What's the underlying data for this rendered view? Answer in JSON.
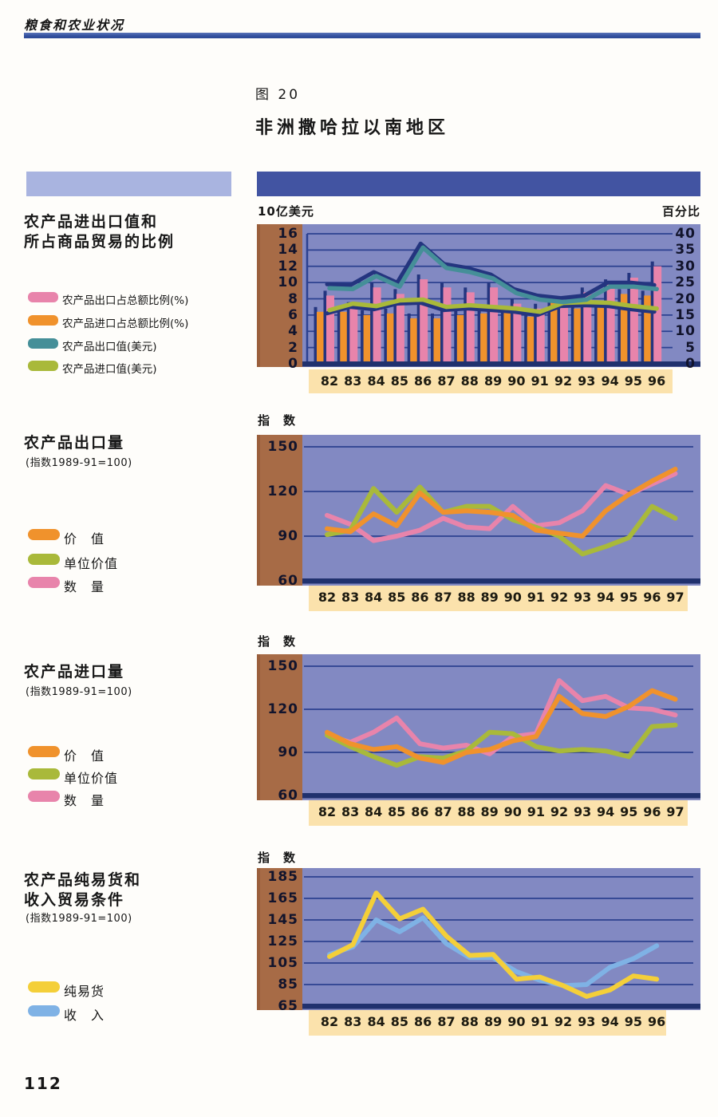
{
  "page": {
    "header": "粮食和农业状况",
    "figure_label": "图 20",
    "title": "非洲撒哈拉以南地区",
    "page_number": "112"
  },
  "colors": {
    "pink": "#e884ab",
    "orange": "#f0922c",
    "teal": "#458f98",
    "olive": "#a9b93a",
    "yellow": "#f4cf39",
    "sky": "#7fb2e5",
    "navy": "#24357f",
    "grid": "#2c4190",
    "plot_bg": "#8289c2",
    "axis_panel_brown": "#a76b46",
    "band_cream": "#fbe2ac",
    "header_bar_dark": "#4254a2",
    "header_bar_light": "#a9b4e0"
  },
  "sections": [
    {
      "title_lines": [
        "农产品进出口值和",
        "所占商品贸易的比例"
      ],
      "legend": [
        {
          "label": "农产品出口占总额比例(%)",
          "color": "#e884ab"
        },
        {
          "label": "农产品进口占总额比例(%)",
          "color": "#f0922c"
        },
        {
          "label": "农产品出口值(美元)",
          "color": "#458f98"
        },
        {
          "label": "农产品进口值(美元)",
          "color": "#a9b93a"
        }
      ]
    },
    {
      "title_lines": [
        "农产品出口量"
      ],
      "subtitle": "(指数1989-91=100)",
      "legend": [
        {
          "label": "价　值",
          "color": "#f0922c"
        },
        {
          "label": "单位价值",
          "color": "#a9b93a"
        },
        {
          "label": "数　量",
          "color": "#e884ab"
        }
      ]
    },
    {
      "title_lines": [
        "农产品进口量"
      ],
      "subtitle": "(指数1989-91=100)",
      "legend": [
        {
          "label": "价　值",
          "color": "#f0922c"
        },
        {
          "label": "单位价值",
          "color": "#a9b93a"
        },
        {
          "label": "数　量",
          "color": "#e884ab"
        }
      ]
    },
    {
      "title_lines": [
        "农产品纯易货和",
        "收入贸易条件"
      ],
      "subtitle": "(指数1989-91=100)",
      "legend": [
        {
          "label": "纯易货",
          "color": "#f4cf39"
        },
        {
          "label": "收　入",
          "color": "#7fb2e5"
        }
      ]
    }
  ],
  "chart_data": [
    {
      "type": "bar",
      "title": "农产品进出口值和所占商品贸易的比例",
      "left_axis": {
        "label": "10亿美元",
        "ticks": [
          16,
          14,
          12,
          10,
          8,
          6,
          4,
          2,
          0
        ],
        "range": [
          0,
          16
        ]
      },
      "right_axis": {
        "label": "百分比",
        "ticks": [
          40,
          35,
          30,
          25,
          20,
          15,
          10,
          5,
          0
        ],
        "range": [
          0,
          40
        ]
      },
      "categories": [
        "82",
        "83",
        "84",
        "85",
        "86",
        "87",
        "88",
        "89",
        "90",
        "91",
        "92",
        "93",
        "94",
        "95",
        "96"
      ],
      "bars": [
        {
          "name": "农产品出口占总额比例(%)",
          "axis": "right",
          "color": "#e884ab",
          "values": [
            21,
            17.5,
            23.5,
            21.5,
            26,
            23.5,
            22,
            23.5,
            18.5,
            17,
            19,
            22,
            24.5,
            26.5,
            30
          ]
        },
        {
          "name": "农产品进口占总额比例(%)",
          "axis": "right",
          "color": "#f0922c",
          "values": [
            16,
            16,
            15,
            15.5,
            14,
            14,
            15,
            15.5,
            16,
            14.5,
            19.5,
            17,
            18,
            21.5,
            21
          ]
        }
      ],
      "lines": [
        {
          "name": "农产品出口值(美元)",
          "axis": "left",
          "color": "#458f98",
          "values": [
            9.3,
            9.2,
            10.8,
            9.5,
            14.3,
            11.8,
            11.3,
            10.5,
            8.7,
            7.9,
            7.6,
            7.9,
            9.5,
            9.5,
            9.2
          ]
        },
        {
          "name": "农产品进口值(美元)",
          "axis": "left",
          "color": "#a9b93a",
          "values": [
            6.6,
            7.4,
            7.1,
            7.8,
            7.9,
            7.0,
            7.2,
            7.0,
            6.8,
            6.4,
            7.5,
            7.6,
            7.5,
            7.1,
            6.8
          ]
        }
      ]
    },
    {
      "type": "line",
      "title": "农产品出口量",
      "note": "指数1989-91=100",
      "ylabel": "指　数",
      "yticks": [
        150,
        120,
        90,
        60
      ],
      "ylim": [
        60,
        150
      ],
      "categories": [
        "82",
        "83",
        "84",
        "85",
        "86",
        "87",
        "88",
        "89",
        "90",
        "91",
        "92",
        "93",
        "94",
        "95",
        "96",
        "97"
      ],
      "series": [
        {
          "name": "价值",
          "color": "#f0922c",
          "values": [
            95,
            93,
            105,
            97,
            119,
            106,
            107,
            106,
            104,
            94,
            92,
            90,
            107,
            118,
            127,
            135
          ]
        },
        {
          "name": "单位价值",
          "color": "#a9b93a",
          "values": [
            91,
            94,
            122,
            106,
            123,
            106,
            110,
            110,
            101,
            96,
            90,
            78,
            83,
            89,
            110,
            102
          ]
        },
        {
          "name": "数量",
          "color": "#e884ab",
          "values": [
            104,
            98,
            87,
            90,
            94,
            102,
            96,
            95,
            110,
            97,
            99,
            107,
            124,
            118,
            125,
            132
          ]
        }
      ]
    },
    {
      "type": "line",
      "title": "农产品进口量",
      "note": "指数1989-91=100",
      "ylabel": "指　数",
      "yticks": [
        150,
        120,
        90,
        60
      ],
      "ylim": [
        60,
        150
      ],
      "categories": [
        "82",
        "83",
        "84",
        "85",
        "86",
        "87",
        "88",
        "89",
        "90",
        "91",
        "92",
        "93",
        "94",
        "95",
        "96",
        "97"
      ],
      "series": [
        {
          "name": "价值",
          "color": "#f0922c",
          "values": [
            104,
            96,
            92,
            94,
            86,
            83,
            90,
            92,
            98,
            101,
            129,
            117,
            115,
            122,
            133,
            127
          ]
        },
        {
          "name": "单位价值",
          "color": "#a9b93a",
          "values": [
            102,
            94,
            87,
            81,
            87,
            86,
            91,
            104,
            103,
            94,
            91,
            92,
            91,
            87,
            108,
            109
          ]
        },
        {
          "name": "数量",
          "color": "#e884ab",
          "values": [
            102,
            97,
            104,
            114,
            96,
            93,
            95,
            89,
            101,
            103,
            140,
            126,
            129,
            121,
            120,
            116
          ]
        }
      ]
    },
    {
      "type": "line",
      "title": "农产品纯易货和收入贸易条件",
      "note": "指数1989-91=100",
      "ylabel": "指　数",
      "yticks": [
        185,
        165,
        145,
        125,
        105,
        85,
        65
      ],
      "ylim": [
        65,
        185
      ],
      "categories": [
        "82",
        "83",
        "84",
        "85",
        "86",
        "87",
        "88",
        "89",
        "90",
        "91",
        "92",
        "93",
        "94",
        "95",
        "96"
      ],
      "series": [
        {
          "name": "纯易货",
          "color": "#f4cf39",
          "values": [
            111,
            122,
            170,
            146,
            155,
            130,
            112,
            113,
            90,
            92,
            84,
            74,
            80,
            93,
            90
          ]
        },
        {
          "name": "收入",
          "color": "#7fb2e5",
          "values": [
            113,
            120,
            145,
            134,
            147,
            123,
            110,
            110,
            97,
            89,
            84,
            85,
            101,
            109,
            121
          ]
        }
      ]
    }
  ]
}
